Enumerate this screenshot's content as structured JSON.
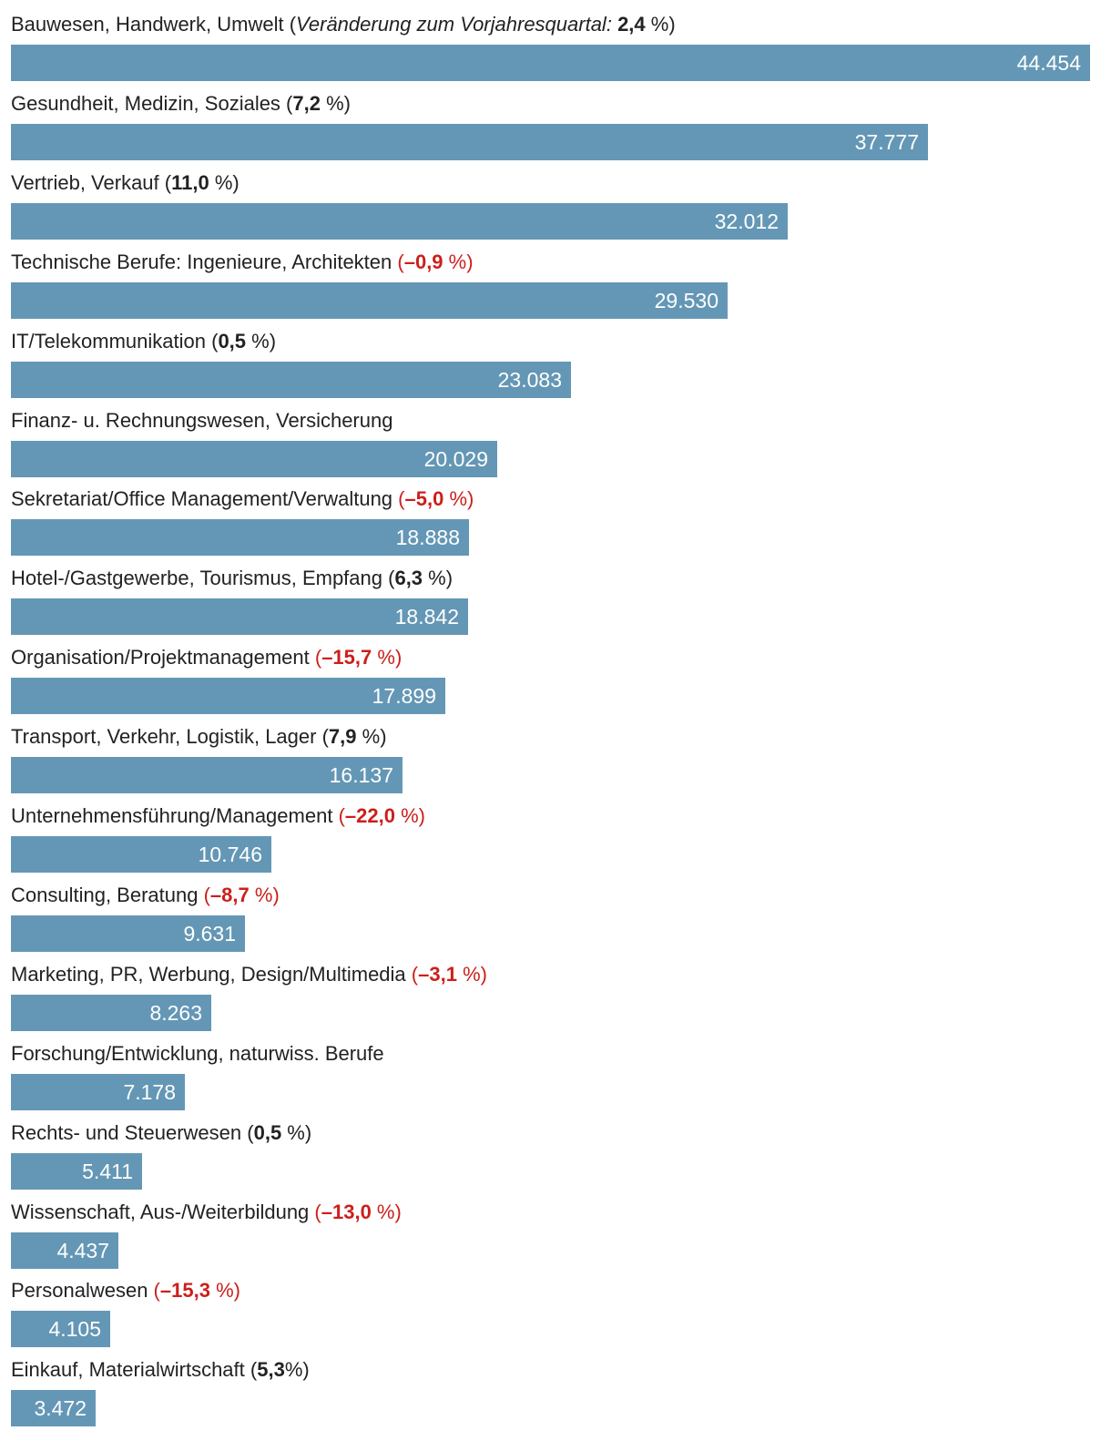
{
  "chart_data": {
    "type": "bar",
    "orientation": "horizontal",
    "bar_color": "#6497b5",
    "negative_change_color": "#cc1f1a",
    "change_note": "Veränderung zum Vorjahresquartal:",
    "categories": [
      "Bauwesen, Handwerk, Umwelt",
      "Gesundheit, Medizin, Soziales",
      "Vertrieb, Verkauf",
      "Technische Berufe: Ingenieure, Architekten",
      "IT/Telekommunikation",
      "Finanz- u. Rechnungswesen, Versicherung",
      "Sekretariat/Office Management/Verwaltung",
      "Hotel-/Gastgewerbe, Tourismus, Empfang",
      "Organisation/Projektmanagement",
      "Transport, Verkehr, Logistik, Lager",
      "Unternehmensführung/Management",
      "Consulting, Beratung",
      "Marketing, PR, Werbung, Design/Multimedia",
      "Forschung/Entwicklung, naturwiss. Berufe",
      "Rechts- und Steuerwesen",
      "Wissenschaft, Aus-/Weiterbildung",
      "Personalwesen",
      "Einkauf, Materialwirtschaft"
    ],
    "values": [
      44454,
      37777,
      32012,
      29530,
      23083,
      20029,
      18888,
      18842,
      17899,
      16137,
      10746,
      9631,
      8263,
      7178,
      5411,
      4437,
      4105,
      3472
    ],
    "value_labels": [
      "44.454",
      "37.777",
      "32.012",
      "29.530",
      "23.083",
      "20.029",
      "18.888",
      "18.842",
      "17.899",
      "16.137",
      "10.746",
      "9.631",
      "8.263",
      "7.178",
      "5.411",
      "4.437",
      "4.105",
      "3.472"
    ],
    "changes": [
      {
        "value": "2,4",
        "unit": " %",
        "negative": false
      },
      {
        "value": "7,2",
        "unit": " %",
        "negative": false
      },
      {
        "value": "11,0",
        "unit": " %",
        "negative": false
      },
      {
        "value": "–0,9",
        "unit": " %",
        "negative": true
      },
      {
        "value": "0,5",
        "unit": " %",
        "negative": false
      },
      null,
      {
        "value": "–5,0",
        "unit": " %",
        "negative": true
      },
      {
        "value": "6,3",
        "unit": " %",
        "negative": false
      },
      {
        "value": "–15,7",
        "unit": " %",
        "negative": true
      },
      {
        "value": "7,9",
        "unit": " %",
        "negative": false
      },
      {
        "value": "–22,0",
        "unit": " %",
        "negative": true
      },
      {
        "value": "–8,7",
        "unit": " %",
        "negative": true
      },
      {
        "value": "–3,1",
        "unit": " %",
        "negative": true
      },
      null,
      {
        "value": "0,5",
        "unit": " %",
        "negative": false
      },
      {
        "value": "–13,0",
        "unit": " %",
        "negative": true
      },
      {
        "value": "–15,3",
        "unit": " %",
        "negative": true
      },
      {
        "value": "5,3",
        "unit": "%",
        "negative": false
      }
    ],
    "title": "",
    "xlabel": "",
    "ylabel": "",
    "xlim": [
      0,
      44454
    ],
    "grid": false,
    "legend": "none"
  }
}
